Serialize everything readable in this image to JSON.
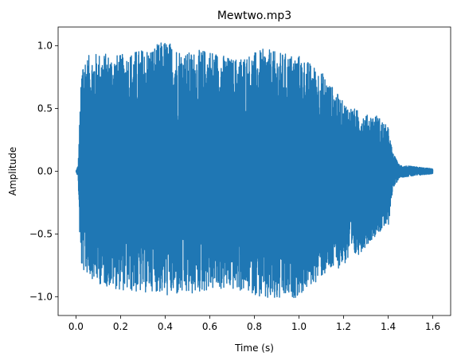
{
  "chart_data": {
    "type": "line",
    "title": "Mewtwo.mp3",
    "xlabel": "Time (s)",
    "ylabel": "Amplitude",
    "xlim": [
      -0.08,
      1.68
    ],
    "ylim": [
      -1.15,
      1.15
    ],
    "xticks": [
      0.0,
      0.2,
      0.4,
      0.6,
      0.8,
      1.0,
      1.2,
      1.4,
      1.6
    ],
    "xtick_labels": [
      "0.0",
      "0.2",
      "0.4",
      "0.6",
      "0.8",
      "1.0",
      "1.2",
      "1.4",
      "1.6"
    ],
    "yticks": [
      -1.0,
      -0.5,
      0.0,
      0.5,
      1.0
    ],
    "ytick_labels": [
      "−1.0",
      "−0.5",
      "0.0",
      "0.5",
      "1.0"
    ],
    "grid": false,
    "legend": "none",
    "series_color": "#1f77b4",
    "duration_s": 1.6,
    "envelope": {
      "t": [
        0.0,
        0.01,
        0.02,
        0.03,
        0.05,
        0.1,
        0.2,
        0.3,
        0.35,
        0.4,
        0.5,
        0.6,
        0.7,
        0.8,
        0.85,
        0.9,
        1.0,
        1.1,
        1.2,
        1.25,
        1.3,
        1.35,
        1.4,
        1.42,
        1.45,
        1.5,
        1.6
      ],
      "upper": [
        0.0,
        0.05,
        0.6,
        0.95,
        0.92,
        0.95,
        0.93,
        0.98,
        1.0,
        1.05,
        0.95,
        0.98,
        0.9,
        0.95,
        0.98,
        0.95,
        0.93,
        0.8,
        0.55,
        0.5,
        0.45,
        0.45,
        0.35,
        0.15,
        0.05,
        0.04,
        0.02
      ],
      "lower": [
        0.0,
        -0.05,
        -0.75,
        -0.8,
        -0.82,
        -0.9,
        -0.95,
        -0.98,
        -0.95,
        -1.0,
        -1.0,
        -0.95,
        -0.95,
        -0.98,
        -1.05,
        -1.05,
        -1.0,
        -0.85,
        -0.75,
        -0.7,
        -0.6,
        -0.5,
        -0.45,
        -0.15,
        -0.05,
        -0.04,
        -0.02
      ]
    }
  }
}
